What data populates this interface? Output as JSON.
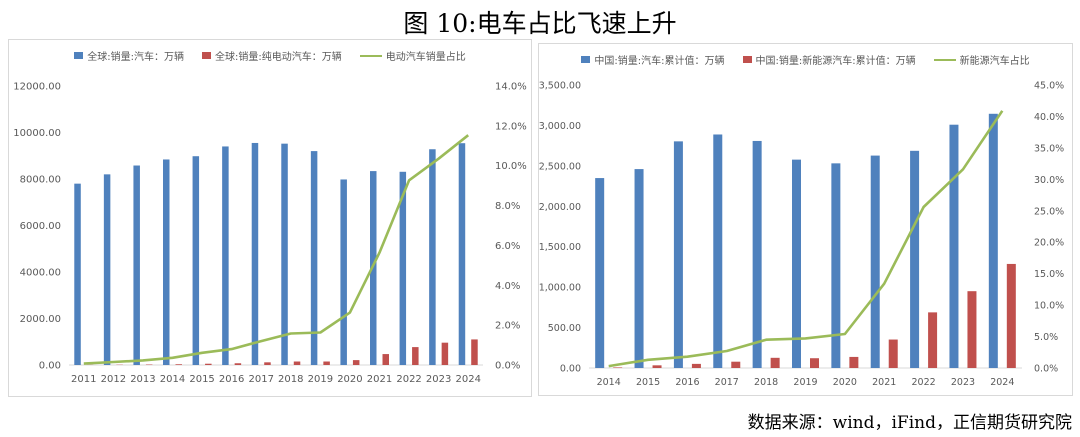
{
  "figure_title": "图 10:电车占比飞速上升",
  "source_note": "数据来源：wind，iFind，正信期货研究院",
  "chart_data": [
    {
      "type": "bar",
      "categories": [
        "2011",
        "2012",
        "2013",
        "2014",
        "2015",
        "2016",
        "2017",
        "2018",
        "2019",
        "2020",
        "2021",
        "2022",
        "2023",
        "2024"
      ],
      "series": [
        {
          "name": "全球:销量:汽车：万辆",
          "kind": "bar",
          "axis": "left",
          "color": "#4f81bd",
          "values": [
            7800,
            8200,
            8580,
            8840,
            8980,
            9400,
            9550,
            9520,
            9200,
            7980,
            8340,
            8310,
            9280,
            9540
          ]
        },
        {
          "name": "全球:销量:纯电动汽车：万辆",
          "kind": "bar",
          "axis": "left",
          "color": "#c0504d",
          "values": [
            5,
            12,
            20,
            32,
            55,
            75,
            115,
            150,
            150,
            210,
            470,
            770,
            960,
            1100
          ]
        },
        {
          "name": "电动汽车销量占比",
          "kind": "line",
          "axis": "right",
          "color": "#9bbb59",
          "values": [
            0.07,
            0.15,
            0.23,
            0.36,
            0.61,
            0.8,
            1.2,
            1.58,
            1.63,
            2.63,
            5.64,
            9.27,
            10.35,
            11.53
          ]
        }
      ],
      "ylim_left": [
        0,
        12000
      ],
      "yticks_left": [
        "0.00",
        "2000.00",
        "4000.00",
        "6000.00",
        "8000.00",
        "10000.00",
        "12000.00"
      ],
      "ylim_right": [
        0,
        14
      ],
      "yticks_right": [
        "0.0%",
        "2.0%",
        "4.0%",
        "6.0%",
        "8.0%",
        "10.0%",
        "12.0%",
        "14.0%"
      ],
      "legend_position": "top"
    },
    {
      "type": "bar",
      "categories": [
        "2014",
        "2015",
        "2016",
        "2017",
        "2018",
        "2019",
        "2020",
        "2021",
        "2022",
        "2023",
        "2024"
      ],
      "series": [
        {
          "name": "中国:销量:汽车:累计值：万辆",
          "kind": "bar",
          "axis": "left",
          "color": "#4f81bd",
          "values": [
            2349,
            2460,
            2803,
            2888,
            2808,
            2577,
            2531,
            2627,
            2686,
            3009,
            3144
          ]
        },
        {
          "name": "中国:销量:新能源汽车:累计值：万辆",
          "kind": "bar",
          "axis": "left",
          "color": "#c0504d",
          "values": [
            7,
            33,
            51,
            78,
            126,
            121,
            137,
            352,
            688,
            950,
            1287
          ]
        },
        {
          "name": "新能源汽车占比",
          "kind": "line",
          "axis": "right",
          "color": "#9bbb59",
          "values": [
            0.3,
            1.3,
            1.8,
            2.7,
            4.5,
            4.7,
            5.4,
            13.4,
            25.6,
            31.6,
            40.9
          ]
        }
      ],
      "ylim_left": [
        0,
        3500
      ],
      "yticks_left": [
        "0.00",
        "500.00",
        "1,000.00",
        "1,500.00",
        "2,000.00",
        "2,500.00",
        "3,000.00",
        "3,500.00"
      ],
      "ylim_right": [
        0,
        45
      ],
      "yticks_right": [
        "0.0%",
        "5.0%",
        "10.0%",
        "15.0%",
        "20.0%",
        "25.0%",
        "30.0%",
        "35.0%",
        "40.0%",
        "45.0%"
      ],
      "legend_position": "top"
    }
  ]
}
